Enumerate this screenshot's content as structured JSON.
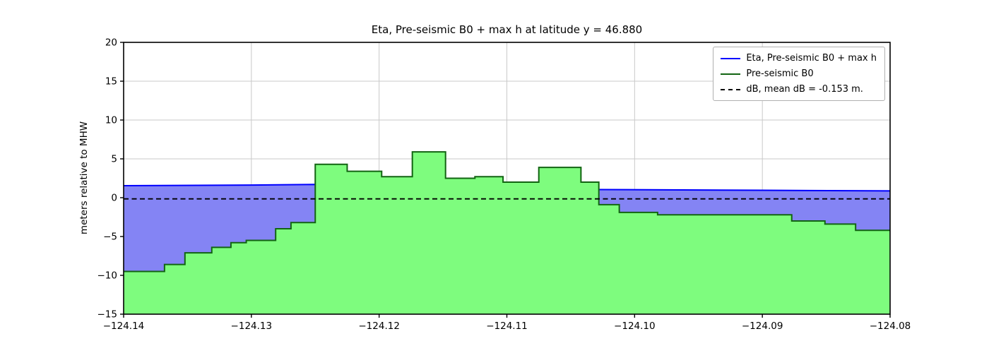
{
  "figure": {
    "title": "Eta, Pre-seismic B0 + max h at latitude y = 46.880",
    "ylabel": "meters relative to MHW"
  },
  "chart_data": {
    "type": "area",
    "title": "Eta, Pre-seismic B0 + max h at latitude y = 46.880",
    "xlabel": "",
    "ylabel": "meters relative to MHW",
    "xlim": [
      -124.14,
      -124.08
    ],
    "ylim": [
      -15,
      20
    ],
    "xticks": [
      -124.14,
      -124.13,
      -124.12,
      -124.11,
      -124.1,
      -124.09,
      -124.08
    ],
    "yticks": [
      -15,
      -10,
      -5,
      0,
      5,
      10,
      15,
      20
    ],
    "grid": true,
    "colors": {
      "grid": "#c9c9c9",
      "spine": "#000000",
      "text": "#000000",
      "eta_line": "#0000ff",
      "eta_fill": "#8484f4",
      "b0_line": "#126412",
      "b0_fill": "#7efc7e",
      "db_line": "#000000"
    },
    "legend": {
      "position": "upper right",
      "entries": [
        {
          "label": "Eta, Pre-seismic B0 + max h",
          "color": "#0000ff",
          "dash": false
        },
        {
          "label": "Pre-seismic B0",
          "color": "#126412",
          "dash": false
        },
        {
          "label": "dB, mean dB = -0.153 m.",
          "color": "#000000",
          "dash": true
        }
      ]
    },
    "series": [
      {
        "name": "Eta, Pre-seismic B0 + max h",
        "type": "line-with-fill",
        "points": [
          [
            -124.14,
            1.55
          ],
          [
            -124.13,
            1.62
          ],
          [
            -124.125,
            1.7
          ],
          [
            -124.1028,
            1.05
          ],
          [
            -124.09,
            0.95
          ],
          [
            -124.08,
            0.87
          ]
        ]
      },
      {
        "name": "Pre-seismic B0",
        "type": "step-with-fill",
        "steps": [
          [
            -124.14,
            -9.5
          ],
          [
            -124.1368,
            -8.6
          ],
          [
            -124.1352,
            -7.1
          ],
          [
            -124.1331,
            -6.4
          ],
          [
            -124.1316,
            -5.8
          ],
          [
            -124.1304,
            -5.5
          ],
          [
            -124.1281,
            -4.0
          ],
          [
            -124.1269,
            -3.2
          ],
          [
            -124.125,
            4.3
          ],
          [
            -124.1225,
            3.4
          ],
          [
            -124.1198,
            2.7
          ],
          [
            -124.1174,
            5.9
          ],
          [
            -124.1148,
            2.5
          ],
          [
            -124.1125,
            2.7
          ],
          [
            -124.1103,
            2.0
          ],
          [
            -124.1075,
            3.9
          ],
          [
            -124.1042,
            2.0
          ],
          [
            -124.1028,
            -0.9
          ],
          [
            -124.1012,
            -1.9
          ],
          [
            -124.0982,
            -2.2
          ],
          [
            -124.0877,
            -3.0
          ],
          [
            -124.0851,
            -3.4
          ],
          [
            -124.0827,
            -4.2
          ]
        ]
      },
      {
        "name": "dB",
        "type": "hline-dashed",
        "value": -0.153
      }
    ]
  }
}
